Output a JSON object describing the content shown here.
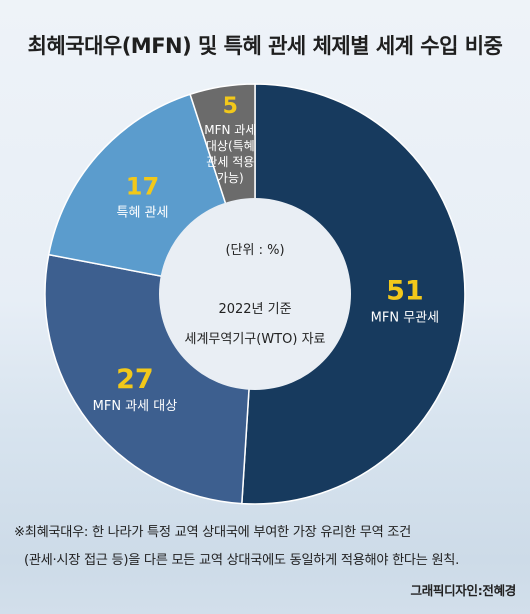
{
  "title": "최혜국대우(MFN) 및 특혜 관세 체제별 세계 수입 비중",
  "chart_data": {
    "type": "pie",
    "variant": "donut",
    "categories": [
      "MFN 무관세",
      "MFN 과세 대상",
      "특혜 관세",
      "MFN 과세 대상(특혜 관세 적용 가능)"
    ],
    "values": [
      51,
      27,
      17,
      5
    ],
    "label_lines": [
      [
        "MFN 무관세"
      ],
      [
        "MFN 과세 대상"
      ],
      [
        "특혜 관세"
      ],
      [
        "MFN 과세",
        "대상(특혜",
        "관세 적용",
        "가능)"
      ]
    ],
    "colors": [
      "#173a5e",
      "#3d5f8f",
      "#5b9ccd",
      "#6b6b6b"
    ],
    "value_color": "#f2c81a",
    "center": {
      "unit": "(단위 : %)",
      "year": "2022년 기준",
      "source": "세계무역기구(WTO) 자료"
    }
  },
  "footnote": {
    "line1": "※최혜국대우: 한 나라가 특정 교역 상대국에 부여한 가장 유리한 무역 조건",
    "line2": "(관세·시장 접근 등)을 다른 모든 교역 상대국에도 동일하게 적용해야 한다는 원칙."
  },
  "credit": "그래픽디자인:전혜경"
}
